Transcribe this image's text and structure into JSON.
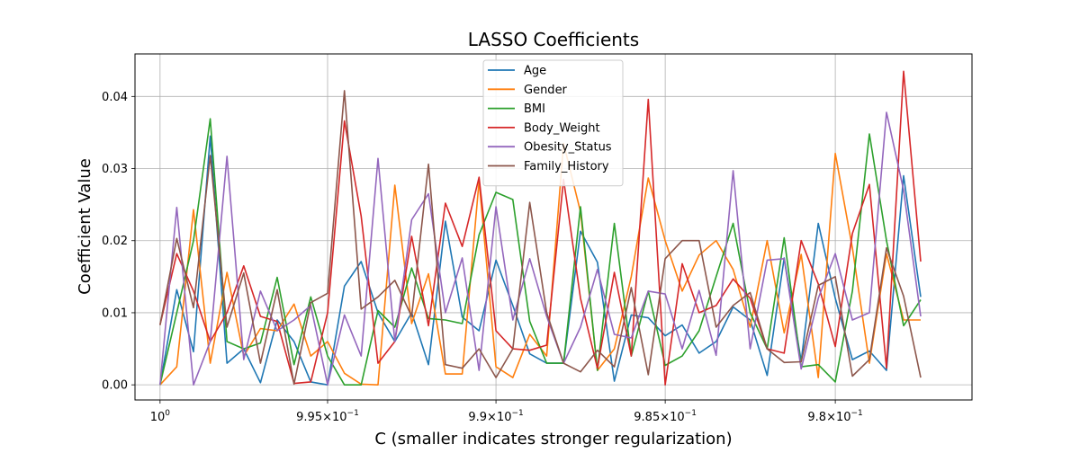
{
  "chart_data": {
    "type": "line",
    "title": "LASSO Coefficients",
    "xlabel": "C (smaller indicates stronger regularization)",
    "ylabel": "Coefficient Value",
    "x_scale": "log",
    "x_inverted": true,
    "xlim": [
      1.00075,
      0.976
    ],
    "ylim": [
      -0.0021,
      0.0459
    ],
    "grid": true,
    "legend_position": "top-center",
    "x_ticks": [
      {
        "value": 1.0,
        "base": "10",
        "exp": "0"
      },
      {
        "value": 0.995,
        "base": "9.95×10",
        "exp": "−1"
      },
      {
        "value": 0.99,
        "base": "9.9×10",
        "exp": "−1"
      },
      {
        "value": 0.985,
        "base": "9.85×10",
        "exp": "−1"
      },
      {
        "value": 0.98,
        "base": "9.8×10",
        "exp": "−1"
      }
    ],
    "y_ticks": [
      {
        "value": 0.0,
        "label": "0.00"
      },
      {
        "value": 0.01,
        "label": "0.01"
      },
      {
        "value": 0.02,
        "label": "0.02"
      },
      {
        "value": 0.03,
        "label": "0.03"
      },
      {
        "value": 0.04,
        "label": "0.04"
      }
    ],
    "x": [
      1.0,
      0.9995,
      0.999,
      0.9985,
      0.998,
      0.9975,
      0.997,
      0.9965,
      0.996,
      0.9955,
      0.995,
      0.9945,
      0.994,
      0.9935,
      0.993,
      0.9925,
      0.992,
      0.9915,
      0.991,
      0.9905,
      0.99,
      0.9895,
      0.989,
      0.9885,
      0.988,
      0.9875,
      0.987,
      0.9865,
      0.986,
      0.9855,
      0.985,
      0.9845,
      0.984,
      0.9835,
      0.983,
      0.9825,
      0.982,
      0.9815,
      0.981,
      0.9805,
      0.98,
      0.9795,
      0.979,
      0.9785,
      0.978,
      0.9775
    ],
    "series": [
      {
        "name": "Age",
        "color": "#1f77b4",
        "values": [
          0.0,
          0.0132,
          0.0046,
          0.0345,
          0.003,
          0.005,
          0.0003,
          0.009,
          0.006,
          0.0004,
          0.0,
          0.0137,
          0.0171,
          0.01,
          0.006,
          0.01,
          0.0028,
          0.0227,
          0.0094,
          0.0075,
          0.0173,
          0.011,
          0.0043,
          0.003,
          0.003,
          0.0213,
          0.017,
          0.0005,
          0.0097,
          0.0093,
          0.0068,
          0.0083,
          0.0044,
          0.006,
          0.0108,
          0.009,
          0.0013,
          0.0176,
          0.0033,
          0.0224,
          0.012,
          0.0035,
          0.0047,
          0.002,
          0.029,
          0.0122
        ]
      },
      {
        "name": "Gender",
        "color": "#ff7f0e",
        "values": [
          0.0,
          0.0025,
          0.0243,
          0.003,
          0.0156,
          0.004,
          0.0078,
          0.0075,
          0.0112,
          0.004,
          0.006,
          0.0016,
          0.0001,
          0.0,
          0.0277,
          0.0085,
          0.0154,
          0.0015,
          0.0015,
          0.0283,
          0.0025,
          0.001,
          0.007,
          0.004,
          0.0335,
          0.024,
          0.002,
          0.005,
          0.015,
          0.0287,
          0.02,
          0.013,
          0.018,
          0.02,
          0.016,
          0.008,
          0.02,
          0.0072,
          0.0181,
          0.001,
          0.0321,
          0.019,
          0.003,
          0.0182,
          0.009,
          0.009
        ]
      },
      {
        "name": "BMI",
        "color": "#2ca02c",
        "values": [
          0.0,
          0.01,
          0.02,
          0.0369,
          0.006,
          0.005,
          0.0058,
          0.0149,
          0.0028,
          0.0122,
          0.004,
          0.0,
          0.0,
          0.0103,
          0.008,
          0.0162,
          0.0092,
          0.009,
          0.0085,
          0.0208,
          0.0267,
          0.0257,
          0.0088,
          0.003,
          0.003,
          0.0247,
          0.002,
          0.0224,
          0.004,
          0.013,
          0.0027,
          0.004,
          0.0075,
          0.015,
          0.0224,
          0.01,
          0.005,
          0.0204,
          0.0025,
          0.0028,
          0.0004,
          0.013,
          0.0348,
          0.02,
          0.0082,
          0.0118
        ]
      },
      {
        "name": "Body_Weight",
        "color": "#d62728",
        "values": [
          0.0083,
          0.0182,
          0.013,
          0.006,
          0.01,
          0.0165,
          0.0095,
          0.0088,
          0.0002,
          0.0004,
          0.01,
          0.0366,
          0.0234,
          0.003,
          0.006,
          0.0206,
          0.0082,
          0.0252,
          0.0192,
          0.0288,
          0.0075,
          0.005,
          0.0048,
          0.0055,
          0.0285,
          0.012,
          0.0023,
          0.0156,
          0.004,
          0.0396,
          0.0,
          0.0168,
          0.01,
          0.011,
          0.0147,
          0.012,
          0.005,
          0.0044,
          0.02,
          0.014,
          0.0053,
          0.021,
          0.0278,
          0.0023,
          0.0435,
          0.0171
        ]
      },
      {
        "name": "Obesity_Status",
        "color": "#9467bd",
        "values": [
          0.0,
          0.0246,
          0.0,
          0.006,
          0.0317,
          0.0035,
          0.013,
          0.0075,
          0.009,
          0.011,
          0.0,
          0.0097,
          0.004,
          0.0314,
          0.006,
          0.0229,
          0.0265,
          0.01,
          0.0176,
          0.002,
          0.0247,
          0.009,
          0.0175,
          0.0095,
          0.003,
          0.008,
          0.016,
          0.007,
          0.0065,
          0.013,
          0.0126,
          0.005,
          0.0131,
          0.0041,
          0.0297,
          0.005,
          0.0173,
          0.0175,
          0.0022,
          0.012,
          0.0182,
          0.009,
          0.01,
          0.0378,
          0.027,
          0.0095
        ]
      },
      {
        "name": "Family_History",
        "color": "#8c564b",
        "values": [
          0.0083,
          0.0203,
          0.0107,
          0.0318,
          0.008,
          0.0155,
          0.003,
          0.0132,
          0.0001,
          0.0114,
          0.0127,
          0.0408,
          0.0105,
          0.0122,
          0.0145,
          0.0095,
          0.0306,
          0.0028,
          0.0023,
          0.005,
          0.001,
          0.005,
          0.0253,
          0.01,
          0.003,
          0.0018,
          0.0048,
          0.0025,
          0.0135,
          0.0014,
          0.0175,
          0.02,
          0.02,
          0.008,
          0.011,
          0.0128,
          0.005,
          0.0031,
          0.0032,
          0.0138,
          0.015,
          0.0012,
          0.0035,
          0.019,
          0.0123,
          0.001
        ]
      }
    ]
  }
}
